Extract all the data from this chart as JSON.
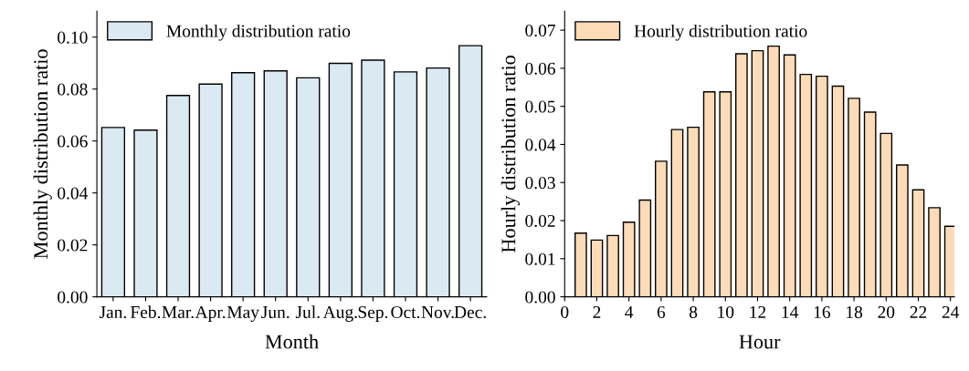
{
  "chart_data": [
    {
      "type": "bar",
      "xlabel": "Month",
      "ylabel": "Monthly distribution ratio",
      "categories": [
        "Jan.",
        "Feb.",
        "Mar.",
        "Apr.",
        "May",
        "Jun.",
        "Jul.",
        "Aug.",
        "Sep.",
        "Oct.",
        "Nov.",
        "Dec."
      ],
      "series": [
        {
          "name": "Monthly distribution ratio",
          "color": "#dbe9f2",
          "values": [
            0.0652,
            0.0642,
            0.0775,
            0.0819,
            0.0863,
            0.087,
            0.0843,
            0.0899,
            0.0911,
            0.0866,
            0.0881,
            0.0967
          ]
        }
      ],
      "ylim": [
        0,
        0.11
      ],
      "yticks": [
        {
          "value": 0,
          "label": "0.00"
        },
        {
          "value": 0.02,
          "label": "0.02"
        },
        {
          "value": 0.04,
          "label": "0.04"
        },
        {
          "value": 0.06,
          "label": "0.06"
        },
        {
          "value": 0.08,
          "label": "0.08"
        },
        {
          "value": 0.1,
          "label": "0.10"
        }
      ],
      "legend": "top left",
      "grid": false
    },
    {
      "type": "bar",
      "xlabel": "Hour",
      "ylabel": "Hourly distribution ratio",
      "x": [
        1,
        2,
        3,
        4,
        5,
        6,
        7,
        8,
        9,
        10,
        11,
        12,
        13,
        14,
        15,
        16,
        17,
        18,
        19,
        20,
        21,
        22,
        23,
        24
      ],
      "series": [
        {
          "name": "Hourly distribution ratio",
          "color": "#fddbb6",
          "values": [
            0.0167,
            0.0149,
            0.0161,
            0.0196,
            0.0254,
            0.0356,
            0.0439,
            0.0445,
            0.0538,
            0.0538,
            0.0638,
            0.0646,
            0.0658,
            0.0635,
            0.0584,
            0.0579,
            0.0553,
            0.0521,
            0.0485,
            0.0429,
            0.0346,
            0.0281,
            0.0234,
            0.0185
          ]
        }
      ],
      "xlim": [
        0,
        24.25
      ],
      "xticks": [
        0,
        2,
        4,
        6,
        8,
        10,
        12,
        14,
        16,
        18,
        20,
        22,
        24
      ],
      "ylim": [
        0,
        0.075
      ],
      "yticks": [
        {
          "value": 0,
          "label": "0.00"
        },
        {
          "value": 0.01,
          "label": "0.01"
        },
        {
          "value": 0.02,
          "label": "0.02"
        },
        {
          "value": 0.03,
          "label": "0.03"
        },
        {
          "value": 0.04,
          "label": "0.04"
        },
        {
          "value": 0.05,
          "label": "0.05"
        },
        {
          "value": 0.06,
          "label": "0.06"
        },
        {
          "value": 0.07,
          "label": "0.07"
        }
      ],
      "legend": "top left",
      "grid": false
    }
  ]
}
